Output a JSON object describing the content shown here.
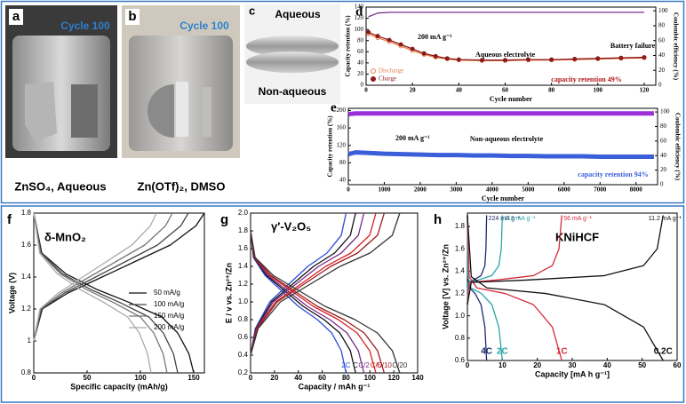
{
  "photos": [
    {
      "panel": "a",
      "label": "Cycle 100",
      "caption": "ZnSO₄, Aqueous"
    },
    {
      "panel": "b",
      "label": "Cycle 100",
      "caption": "Zn(OTf)₂, DMSO"
    },
    {
      "panel": "c",
      "top": "Aqueous",
      "bottom": "Non-aqueous"
    }
  ],
  "chart_data": [
    {
      "type": "line",
      "panel": "d",
      "x_label": "Cycle number",
      "y_label": "Capacity retention (%)",
      "y2_label": "Coulombic efficiency (%)",
      "xlim": [
        0,
        125
      ],
      "xticks": [
        0,
        20,
        40,
        60,
        80,
        100,
        120
      ],
      "ylim": [
        0,
        140
      ],
      "yticks": [
        0,
        20,
        40,
        60,
        80,
        100,
        120,
        140
      ],
      "y2lim": [
        0,
        105
      ],
      "y2ticks": [
        0,
        20,
        40,
        60,
        80,
        100
      ],
      "legend": "lower left",
      "annotations": [
        "200 mA g⁻¹",
        "Aqueous electrolyte",
        "Battery failure",
        "capacity retention 49%"
      ],
      "series": [
        {
          "name": "Discharge",
          "color": "#e8804a",
          "marker": "circle",
          "x": [
            1,
            5,
            10,
            15,
            20,
            25,
            30,
            35,
            40,
            50,
            60,
            70,
            80,
            90,
            100,
            110,
            120
          ],
          "values": [
            92,
            85,
            78,
            70,
            62,
            55,
            50,
            47,
            45,
            44,
            44,
            45,
            45,
            46,
            47,
            48,
            49
          ]
        },
        {
          "name": "Charge",
          "color": "#8b1a1a",
          "marker": "circle",
          "x": [
            1,
            5,
            10,
            15,
            20,
            25,
            30,
            35,
            40,
            50,
            60,
            70,
            80,
            90,
            100,
            110,
            120
          ],
          "values": [
            95,
            88,
            81,
            73,
            65,
            57,
            52,
            48,
            46,
            45,
            45,
            46,
            46,
            47,
            48,
            49,
            50
          ]
        },
        {
          "color": "#7b2d8e",
          "axis": "y2",
          "x": [
            1,
            5,
            10,
            15,
            20,
            25,
            30,
            35,
            40,
            50,
            60,
            70,
            80,
            90,
            100,
            110,
            120
          ],
          "values": [
            92,
            97,
            98,
            98,
            98,
            98,
            98,
            98,
            98,
            98,
            98,
            98,
            98,
            98,
            98,
            98,
            98
          ]
        }
      ]
    },
    {
      "type": "line",
      "panel": "e",
      "x_label": "Cycle number",
      "y_label": "Capacity retention (%)",
      "y2_label": "Coulombic efficiency (%)",
      "xlim": [
        0,
        8600
      ],
      "xticks": [
        0,
        1000,
        2000,
        3000,
        4000,
        5000,
        6000,
        7000,
        8000
      ],
      "ylim": [
        30,
        205
      ],
      "yticks": [
        40,
        80,
        120,
        160,
        200
      ],
      "y2lim": [
        0,
        105
      ],
      "y2ticks": [
        0,
        20,
        40,
        60,
        80,
        100
      ],
      "annotations": [
        "200 mA g⁻¹",
        "Non-aqueous electrolyte",
        "capacity retention 94%"
      ],
      "series": [
        {
          "color": "#3a5fd9",
          "width": 5,
          "x": [
            1,
            200,
            500,
            1000,
            1500,
            2000,
            2500,
            3000,
            3500,
            4000,
            4500,
            5000,
            5500,
            6000,
            6500,
            7000,
            7500,
            8000,
            8500
          ],
          "values": [
            100,
            104,
            103,
            101,
            100,
            99,
            98,
            98,
            97,
            97,
            96,
            96,
            95,
            95,
            95,
            94,
            94,
            94,
            94
          ]
        },
        {
          "color": "#9b30d9",
          "width": 5,
          "axis": "y2",
          "x": [
            1,
            200,
            500,
            1000,
            1500,
            2000,
            2500,
            3000,
            3500,
            4000,
            4500,
            5000,
            5500,
            6000,
            6500,
            7000,
            7500,
            8000,
            8500
          ],
          "values": [
            97,
            98,
            98,
            98,
            98,
            98,
            98,
            98,
            98,
            98,
            98,
            98,
            98,
            98,
            98,
            98,
            98,
            98,
            98
          ]
        }
      ]
    },
    {
      "type": "line",
      "panel": "f",
      "title": "δ-MnO₂",
      "x_label": "Specific capacity (mAh/g)",
      "y_label": "Voltage (V)",
      "xlim": [
        0,
        160
      ],
      "xticks": [
        0,
        50,
        100,
        150
      ],
      "ylim": [
        0.8,
        1.8
      ],
      "yticks": [
        0.8,
        1,
        1.2,
        1.4,
        1.6,
        1.8
      ],
      "legend": "center right",
      "series": [
        {
          "name": "50 mA/g",
          "color": "#111111",
          "x": [
            0,
            7.5,
            30,
            60,
            90,
            120,
            135,
            145.5,
            150,
            null,
            0,
            8,
            32,
            64,
            96,
            128,
            152,
            160
          ],
          "values": [
            1.8,
            1.55,
            1.42,
            1.32,
            1.24,
            1.15,
            1.05,
            0.92,
            0.8,
            null,
            1.0,
            1.2,
            1.3,
            1.4,
            1.5,
            1.6,
            1.72,
            1.8
          ]
        },
        {
          "name": "100 mA/g",
          "color": "#444444",
          "x": [
            0,
            6.8,
            27,
            54,
            81,
            108,
            121.5,
            131,
            135,
            null,
            0,
            7.3,
            29,
            58,
            87,
            116,
            137.8,
            145
          ],
          "values": [
            1.8,
            1.55,
            1.42,
            1.32,
            1.24,
            1.15,
            1.05,
            0.92,
            0.8,
            null,
            1.0,
            1.2,
            1.3,
            1.4,
            1.5,
            1.6,
            1.72,
            1.8
          ]
        },
        {
          "name": "150 mA/g",
          "color": "#777777",
          "x": [
            0,
            6.3,
            25,
            50,
            75,
            100,
            112.5,
            121.3,
            125,
            null,
            0,
            6.5,
            26,
            52,
            78,
            104,
            123.5,
            130
          ],
          "values": [
            1.8,
            1.55,
            1.42,
            1.32,
            1.24,
            1.15,
            1.05,
            0.92,
            0.8,
            null,
            1.0,
            1.2,
            1.3,
            1.4,
            1.5,
            1.6,
            1.72,
            1.8
          ]
        },
        {
          "name": "200 mA/g",
          "color": "#aaaaaa",
          "x": [
            0,
            5.5,
            22,
            44,
            66,
            88,
            99,
            106.7,
            110,
            null,
            0,
            5.8,
            23,
            46,
            69,
            92,
            109.3,
            115
          ],
          "values": [
            1.8,
            1.55,
            1.42,
            1.32,
            1.24,
            1.15,
            1.05,
            0.92,
            0.8,
            null,
            1.0,
            1.2,
            1.3,
            1.4,
            1.5,
            1.6,
            1.72,
            1.8
          ]
        }
      ]
    },
    {
      "type": "line",
      "panel": "g",
      "title": "γ′-V₂O₅",
      "x_label": "Capacity / mAh g⁻¹",
      "y_label": "E / v vs. Zn²⁺/Zn",
      "xlim": [
        0,
        140
      ],
      "xticks": [
        0,
        20,
        40,
        60,
        80,
        100,
        120,
        140
      ],
      "ylim": [
        0.2,
        2.0
      ],
      "yticks": [
        0.2,
        0.4,
        0.6,
        0.8,
        {
          "value": 1,
          "label": "1.0"
        },
        1.2,
        1.4,
        1.6,
        1.8,
        {
          "value": 2,
          "label": "2.0"
        }
      ],
      "series": [
        {
          "name": "2C",
          "color": "#2a4bd7",
          "x": [
            0,
            2.4,
            12,
            24,
            40,
            56,
            68,
            76,
            80,
            null,
            0,
            4,
            16,
            32,
            48,
            64,
            76,
            80
          ],
          "values": [
            1.8,
            1.5,
            1.3,
            1.15,
            0.95,
            0.8,
            0.65,
            0.45,
            0.2,
            null,
            0.4,
            0.7,
            1.0,
            1.2,
            1.4,
            1.55,
            1.75,
            2.0
          ]
        },
        {
          "name": "C",
          "color": "#111111",
          "x": [
            0,
            2.6,
            13.2,
            26.4,
            44,
            61.6,
            74.8,
            83.6,
            88,
            null,
            0,
            4.4,
            17.6,
            35.2,
            52.8,
            70.4,
            83.6,
            88
          ],
          "values": [
            1.8,
            1.5,
            1.3,
            1.15,
            0.95,
            0.8,
            0.65,
            0.45,
            0.2,
            null,
            0.4,
            0.7,
            1.0,
            1.2,
            1.4,
            1.55,
            1.75,
            2.0
          ]
        },
        {
          "name": "C/2",
          "color": "#7a2a8a",
          "x": [
            0,
            2.9,
            14.3,
            28.5,
            47.5,
            66.5,
            80.8,
            90.3,
            95,
            null,
            0,
            4.8,
            19,
            38,
            57,
            76,
            90.3,
            95
          ],
          "values": [
            1.8,
            1.5,
            1.3,
            1.15,
            0.95,
            0.8,
            0.65,
            0.45,
            0.2,
            null,
            0.4,
            0.7,
            1.0,
            1.2,
            1.4,
            1.55,
            1.75,
            2.0
          ]
        },
        {
          "name": "C/5",
          "color": "#d62020",
          "x": [
            0,
            3.2,
            15.8,
            31.5,
            52.5,
            73.5,
            89.3,
            99.8,
            105,
            null,
            0,
            5.3,
            21,
            42,
            63,
            84,
            99.8,
            105
          ],
          "values": [
            1.8,
            1.5,
            1.3,
            1.15,
            0.95,
            0.8,
            0.65,
            0.45,
            0.2,
            null,
            0.4,
            0.7,
            1.0,
            1.2,
            1.4,
            1.55,
            1.75,
            2.0
          ]
        },
        {
          "name": "C/10",
          "color": "#9a1b1b",
          "x": [
            0,
            3.4,
            16.8,
            33.6,
            56,
            78.4,
            95.2,
            106.4,
            112,
            null,
            0,
            5.6,
            22.4,
            44.8,
            67.2,
            89.6,
            106.4,
            112
          ],
          "values": [
            1.8,
            1.5,
            1.3,
            1.15,
            0.95,
            0.8,
            0.65,
            0.45,
            0.2,
            null,
            0.4,
            0.7,
            1.0,
            1.2,
            1.4,
            1.55,
            1.75,
            2.0
          ]
        },
        {
          "name": "C/20",
          "color": "#333333",
          "x": [
            0,
            3.8,
            18.8,
            37.5,
            62.5,
            87.5,
            106.3,
            118.8,
            125,
            null,
            0,
            6.3,
            25,
            50,
            75,
            100,
            118.8,
            125
          ],
          "values": [
            1.8,
            1.5,
            1.3,
            1.15,
            0.95,
            0.8,
            0.65,
            0.45,
            0.2,
            null,
            0.4,
            0.7,
            1.0,
            1.2,
            1.4,
            1.55,
            1.75,
            2.0
          ]
        }
      ]
    },
    {
      "type": "line",
      "panel": "h",
      "title": "KNiHCF",
      "x_label": "Capacity [mA h g⁻¹]",
      "y_label": "Voltage [V] vs. Zn²⁺/Zn",
      "xlim": [
        0,
        60
      ],
      "xticks": [
        0,
        10,
        20,
        30,
        40,
        50,
        60
      ],
      "ylim": [
        0.6,
        1.92
      ],
      "yticks": [
        0.6,
        0.8,
        {
          "value": 1,
          "label": "1.0"
        },
        1.2,
        1.4,
        1.6,
        1.8
      ],
      "series": [
        {
          "name": "224 mA g⁻¹",
          "rate": "4C",
          "color": "#1f2a6b",
          "x": [
            0,
            0.1,
            1.7,
            3.9,
            5,
            5.3,
            5.5,
            null,
            0,
            0.1,
            0.6,
            2.2,
            3.9,
            5,
            5.5
          ],
          "values": [
            1.1,
            1.3,
            1.32,
            1.36,
            1.45,
            1.6,
            1.9,
            null,
            1.9,
            1.35,
            1.25,
            1.2,
            1.1,
            0.9,
            0.6
          ]
        },
        {
          "name": "112 mA g⁻¹",
          "rate": "2C",
          "color": "#2aa6a6",
          "x": [
            0,
            0.2,
            3,
            7,
            9,
            9.7,
            10,
            null,
            0,
            0.2,
            1,
            4,
            7,
            9,
            10
          ],
          "values": [
            1.1,
            1.3,
            1.32,
            1.36,
            1.45,
            1.6,
            1.9,
            null,
            1.9,
            1.35,
            1.25,
            1.2,
            1.1,
            0.9,
            0.6
          ]
        },
        {
          "name": "56 mA g⁻¹",
          "rate": "1C",
          "color": "#d42a3a",
          "x": [
            0,
            0.5,
            8.1,
            18.9,
            24.3,
            26.2,
            27,
            null,
            0,
            0.5,
            2.7,
            10.8,
            18.9,
            24.3,
            27
          ],
          "values": [
            1.1,
            1.3,
            1.32,
            1.36,
            1.45,
            1.6,
            1.9,
            null,
            1.9,
            1.35,
            1.25,
            1.2,
            1.1,
            0.9,
            0.6
          ]
        },
        {
          "name": "11.2 mA g⁻¹",
          "rate": "0.2C",
          "color": "#111111",
          "x": [
            0,
            1.1,
            16.8,
            39.2,
            50.4,
            54.3,
            56,
            null,
            0,
            1.1,
            5.6,
            22.4,
            39.2,
            50.4,
            56
          ],
          "values": [
            1.1,
            1.3,
            1.32,
            1.36,
            1.45,
            1.6,
            1.9,
            null,
            1.9,
            1.35,
            1.25,
            1.2,
            1.1,
            0.9,
            0.6
          ]
        }
      ]
    }
  ]
}
